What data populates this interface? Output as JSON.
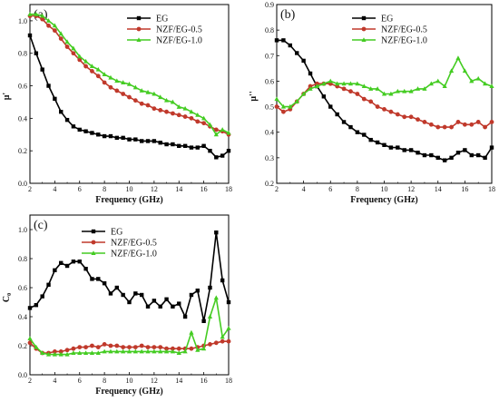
{
  "chart_data": [
    {
      "panel": "(a)",
      "type": "line",
      "xlabel": "Frequency (GHz)",
      "ylabel": "μ'",
      "xlim": [
        2,
        18
      ],
      "ylim": [
        0.0,
        1.1
      ],
      "xticks": [
        2,
        4,
        6,
        8,
        10,
        12,
        14,
        16,
        18
      ],
      "yticks": [
        0.0,
        0.2,
        0.4,
        0.6,
        0.8,
        1.0
      ],
      "legend_position": "top-right",
      "series": [
        {
          "name": "EG",
          "color": "#000000",
          "marker": "square",
          "x": [
            2.0,
            2.5,
            3.0,
            3.5,
            4.0,
            4.5,
            5.0,
            5.5,
            6.0,
            6.5,
            7.0,
            7.5,
            8.0,
            8.5,
            9.0,
            9.5,
            10.0,
            10.5,
            11.0,
            11.5,
            12.0,
            12.5,
            13.0,
            13.5,
            14.0,
            14.5,
            15.0,
            15.5,
            16.0,
            16.5,
            17.0,
            17.5,
            18.0
          ],
          "y": [
            0.91,
            0.8,
            0.7,
            0.6,
            0.52,
            0.44,
            0.39,
            0.35,
            0.33,
            0.32,
            0.31,
            0.3,
            0.29,
            0.29,
            0.28,
            0.28,
            0.27,
            0.27,
            0.26,
            0.26,
            0.26,
            0.25,
            0.24,
            0.24,
            0.23,
            0.23,
            0.22,
            0.22,
            0.23,
            0.2,
            0.16,
            0.17,
            0.2
          ]
        },
        {
          "name": "NZF/EG-0.5",
          "color": "#c0392b",
          "marker": "circle",
          "x": [
            2.0,
            2.5,
            3.0,
            3.5,
            4.0,
            4.5,
            5.0,
            5.5,
            6.0,
            6.5,
            7.0,
            7.5,
            8.0,
            8.5,
            9.0,
            9.5,
            10.0,
            10.5,
            11.0,
            11.5,
            12.0,
            12.5,
            13.0,
            13.5,
            14.0,
            14.5,
            15.0,
            15.5,
            16.0,
            16.5,
            17.0,
            17.5,
            18.0
          ],
          "y": [
            1.03,
            1.03,
            1.01,
            0.97,
            0.94,
            0.89,
            0.84,
            0.8,
            0.76,
            0.72,
            0.69,
            0.66,
            0.62,
            0.59,
            0.57,
            0.55,
            0.53,
            0.51,
            0.49,
            0.48,
            0.46,
            0.45,
            0.44,
            0.43,
            0.42,
            0.41,
            0.4,
            0.38,
            0.37,
            0.35,
            0.33,
            0.32,
            0.3
          ]
        },
        {
          "name": "NZF/EG-1.0",
          "color": "#44cc22",
          "marker": "triangle",
          "x": [
            2.0,
            2.5,
            3.0,
            3.5,
            4.0,
            4.5,
            5.0,
            5.5,
            6.0,
            6.5,
            7.0,
            7.5,
            8.0,
            8.5,
            9.0,
            9.5,
            10.0,
            10.5,
            11.0,
            11.5,
            12.0,
            12.5,
            13.0,
            13.5,
            14.0,
            14.5,
            15.0,
            15.5,
            16.0,
            16.5,
            17.0,
            17.5,
            18.0
          ],
          "y": [
            1.04,
            1.04,
            1.03,
            1.0,
            0.97,
            0.92,
            0.87,
            0.83,
            0.78,
            0.75,
            0.72,
            0.7,
            0.67,
            0.65,
            0.63,
            0.62,
            0.61,
            0.59,
            0.57,
            0.56,
            0.55,
            0.53,
            0.51,
            0.5,
            0.47,
            0.46,
            0.44,
            0.42,
            0.4,
            0.36,
            0.3,
            0.33,
            0.31
          ]
        }
      ]
    },
    {
      "panel": "(b)",
      "type": "line",
      "xlabel": "Frequency (GHz)",
      "ylabel": "μ''",
      "xlim": [
        2,
        18
      ],
      "ylim": [
        0.2,
        0.9
      ],
      "xticks": [
        2,
        4,
        6,
        8,
        10,
        12,
        14,
        16,
        18
      ],
      "yticks": [
        0.2,
        0.3,
        0.4,
        0.5,
        0.6,
        0.7,
        0.8,
        0.9
      ],
      "legend_position": "top-right",
      "series": [
        {
          "name": "EG",
          "color": "#000000",
          "marker": "square",
          "x": [
            2.0,
            2.5,
            3.0,
            3.5,
            4.0,
            4.5,
            5.0,
            5.5,
            6.0,
            6.5,
            7.0,
            7.5,
            8.0,
            8.5,
            9.0,
            9.5,
            10.0,
            10.5,
            11.0,
            11.5,
            12.0,
            12.5,
            13.0,
            13.5,
            14.0,
            14.5,
            15.0,
            15.5,
            16.0,
            16.5,
            17.0,
            17.5,
            18.0
          ],
          "y": [
            0.76,
            0.76,
            0.74,
            0.71,
            0.68,
            0.63,
            0.58,
            0.54,
            0.5,
            0.47,
            0.44,
            0.42,
            0.4,
            0.39,
            0.37,
            0.36,
            0.35,
            0.34,
            0.34,
            0.33,
            0.33,
            0.32,
            0.31,
            0.31,
            0.3,
            0.29,
            0.3,
            0.32,
            0.33,
            0.31,
            0.31,
            0.3,
            0.34
          ]
        },
        {
          "name": "NZF/EG-0.5",
          "color": "#c0392b",
          "marker": "circle",
          "x": [
            2.0,
            2.5,
            3.0,
            3.5,
            4.0,
            4.5,
            5.0,
            5.5,
            6.0,
            6.5,
            7.0,
            7.5,
            8.0,
            8.5,
            9.0,
            9.5,
            10.0,
            10.5,
            11.0,
            11.5,
            12.0,
            12.5,
            13.0,
            13.5,
            14.0,
            14.5,
            15.0,
            15.5,
            16.0,
            16.5,
            17.0,
            17.5,
            18.0
          ],
          "y": [
            0.5,
            0.48,
            0.49,
            0.52,
            0.55,
            0.58,
            0.59,
            0.59,
            0.59,
            0.58,
            0.57,
            0.56,
            0.55,
            0.53,
            0.52,
            0.5,
            0.49,
            0.48,
            0.47,
            0.46,
            0.46,
            0.45,
            0.44,
            0.43,
            0.42,
            0.42,
            0.42,
            0.44,
            0.43,
            0.43,
            0.44,
            0.42,
            0.44
          ]
        },
        {
          "name": "NZF/EG-1.0",
          "color": "#44cc22",
          "marker": "triangle",
          "x": [
            2.0,
            2.5,
            3.0,
            3.5,
            4.0,
            4.5,
            5.0,
            5.5,
            6.0,
            6.5,
            7.0,
            7.5,
            8.0,
            8.5,
            9.0,
            9.5,
            10.0,
            10.5,
            11.0,
            11.5,
            12.0,
            12.5,
            13.0,
            13.5,
            14.0,
            14.5,
            15.0,
            15.5,
            16.0,
            16.5,
            17.0,
            17.5,
            18.0
          ],
          "y": [
            0.53,
            0.5,
            0.5,
            0.52,
            0.55,
            0.57,
            0.58,
            0.59,
            0.6,
            0.59,
            0.59,
            0.59,
            0.59,
            0.58,
            0.57,
            0.57,
            0.55,
            0.55,
            0.56,
            0.56,
            0.56,
            0.57,
            0.57,
            0.59,
            0.6,
            0.58,
            0.64,
            0.69,
            0.64,
            0.6,
            0.61,
            0.59,
            0.58
          ]
        }
      ]
    },
    {
      "panel": "(c)",
      "type": "line",
      "xlabel": "Frequency (GHz)",
      "ylabel": "C₀",
      "xlim": [
        2,
        18
      ],
      "ylim": [
        0.0,
        1.1
      ],
      "xticks": [
        2,
        4,
        6,
        8,
        10,
        12,
        14,
        16,
        18
      ],
      "yticks": [
        0.0,
        0.2,
        0.4,
        0.6,
        0.8,
        1.0
      ],
      "legend_position": "top-center",
      "series": [
        {
          "name": "EG",
          "color": "#000000",
          "marker": "square",
          "x": [
            2.0,
            2.5,
            3.0,
            3.5,
            4.0,
            4.5,
            5.0,
            5.5,
            6.0,
            6.5,
            7.0,
            7.5,
            8.0,
            8.5,
            9.0,
            9.5,
            10.0,
            10.5,
            11.0,
            11.5,
            12.0,
            12.5,
            13.0,
            13.5,
            14.0,
            14.5,
            15.0,
            15.5,
            16.0,
            16.5,
            17.0,
            17.5,
            18.0
          ],
          "y": [
            0.46,
            0.48,
            0.54,
            0.62,
            0.72,
            0.77,
            0.75,
            0.78,
            0.78,
            0.73,
            0.66,
            0.66,
            0.63,
            0.56,
            0.6,
            0.55,
            0.5,
            0.56,
            0.55,
            0.47,
            0.51,
            0.47,
            0.52,
            0.47,
            0.49,
            0.4,
            0.55,
            0.58,
            0.37,
            0.6,
            0.98,
            0.65,
            0.5
          ]
        },
        {
          "name": "NZF/EG-0.5",
          "color": "#c0392b",
          "marker": "circle",
          "x": [
            2.0,
            2.5,
            3.0,
            3.5,
            4.0,
            4.5,
            5.0,
            5.5,
            6.0,
            6.5,
            7.0,
            7.5,
            8.0,
            8.5,
            9.0,
            9.5,
            10.0,
            10.5,
            11.0,
            11.5,
            12.0,
            12.5,
            13.0,
            13.5,
            14.0,
            14.5,
            15.0,
            15.5,
            16.0,
            16.5,
            17.0,
            17.5,
            18.0
          ],
          "y": [
            0.22,
            0.18,
            0.15,
            0.15,
            0.16,
            0.16,
            0.17,
            0.18,
            0.19,
            0.19,
            0.2,
            0.19,
            0.21,
            0.2,
            0.2,
            0.19,
            0.19,
            0.19,
            0.2,
            0.19,
            0.19,
            0.19,
            0.18,
            0.18,
            0.18,
            0.18,
            0.18,
            0.19,
            0.2,
            0.21,
            0.22,
            0.23,
            0.23
          ]
        },
        {
          "name": "NZF/EG-1.0",
          "color": "#44cc22",
          "marker": "triangle",
          "x": [
            2.0,
            2.5,
            3.0,
            3.5,
            4.0,
            4.5,
            5.0,
            5.5,
            6.0,
            6.5,
            7.0,
            7.5,
            8.0,
            8.5,
            9.0,
            9.5,
            10.0,
            10.5,
            11.0,
            11.5,
            12.0,
            12.5,
            13.0,
            13.5,
            14.0,
            14.5,
            15.0,
            15.5,
            16.0,
            16.5,
            17.0,
            17.5,
            18.0
          ],
          "y": [
            0.25,
            0.19,
            0.15,
            0.14,
            0.14,
            0.14,
            0.14,
            0.15,
            0.15,
            0.15,
            0.15,
            0.15,
            0.16,
            0.16,
            0.16,
            0.16,
            0.16,
            0.16,
            0.16,
            0.16,
            0.16,
            0.16,
            0.16,
            0.16,
            0.15,
            0.16,
            0.29,
            0.17,
            0.18,
            0.4,
            0.53,
            0.26,
            0.32
          ]
        }
      ]
    }
  ]
}
